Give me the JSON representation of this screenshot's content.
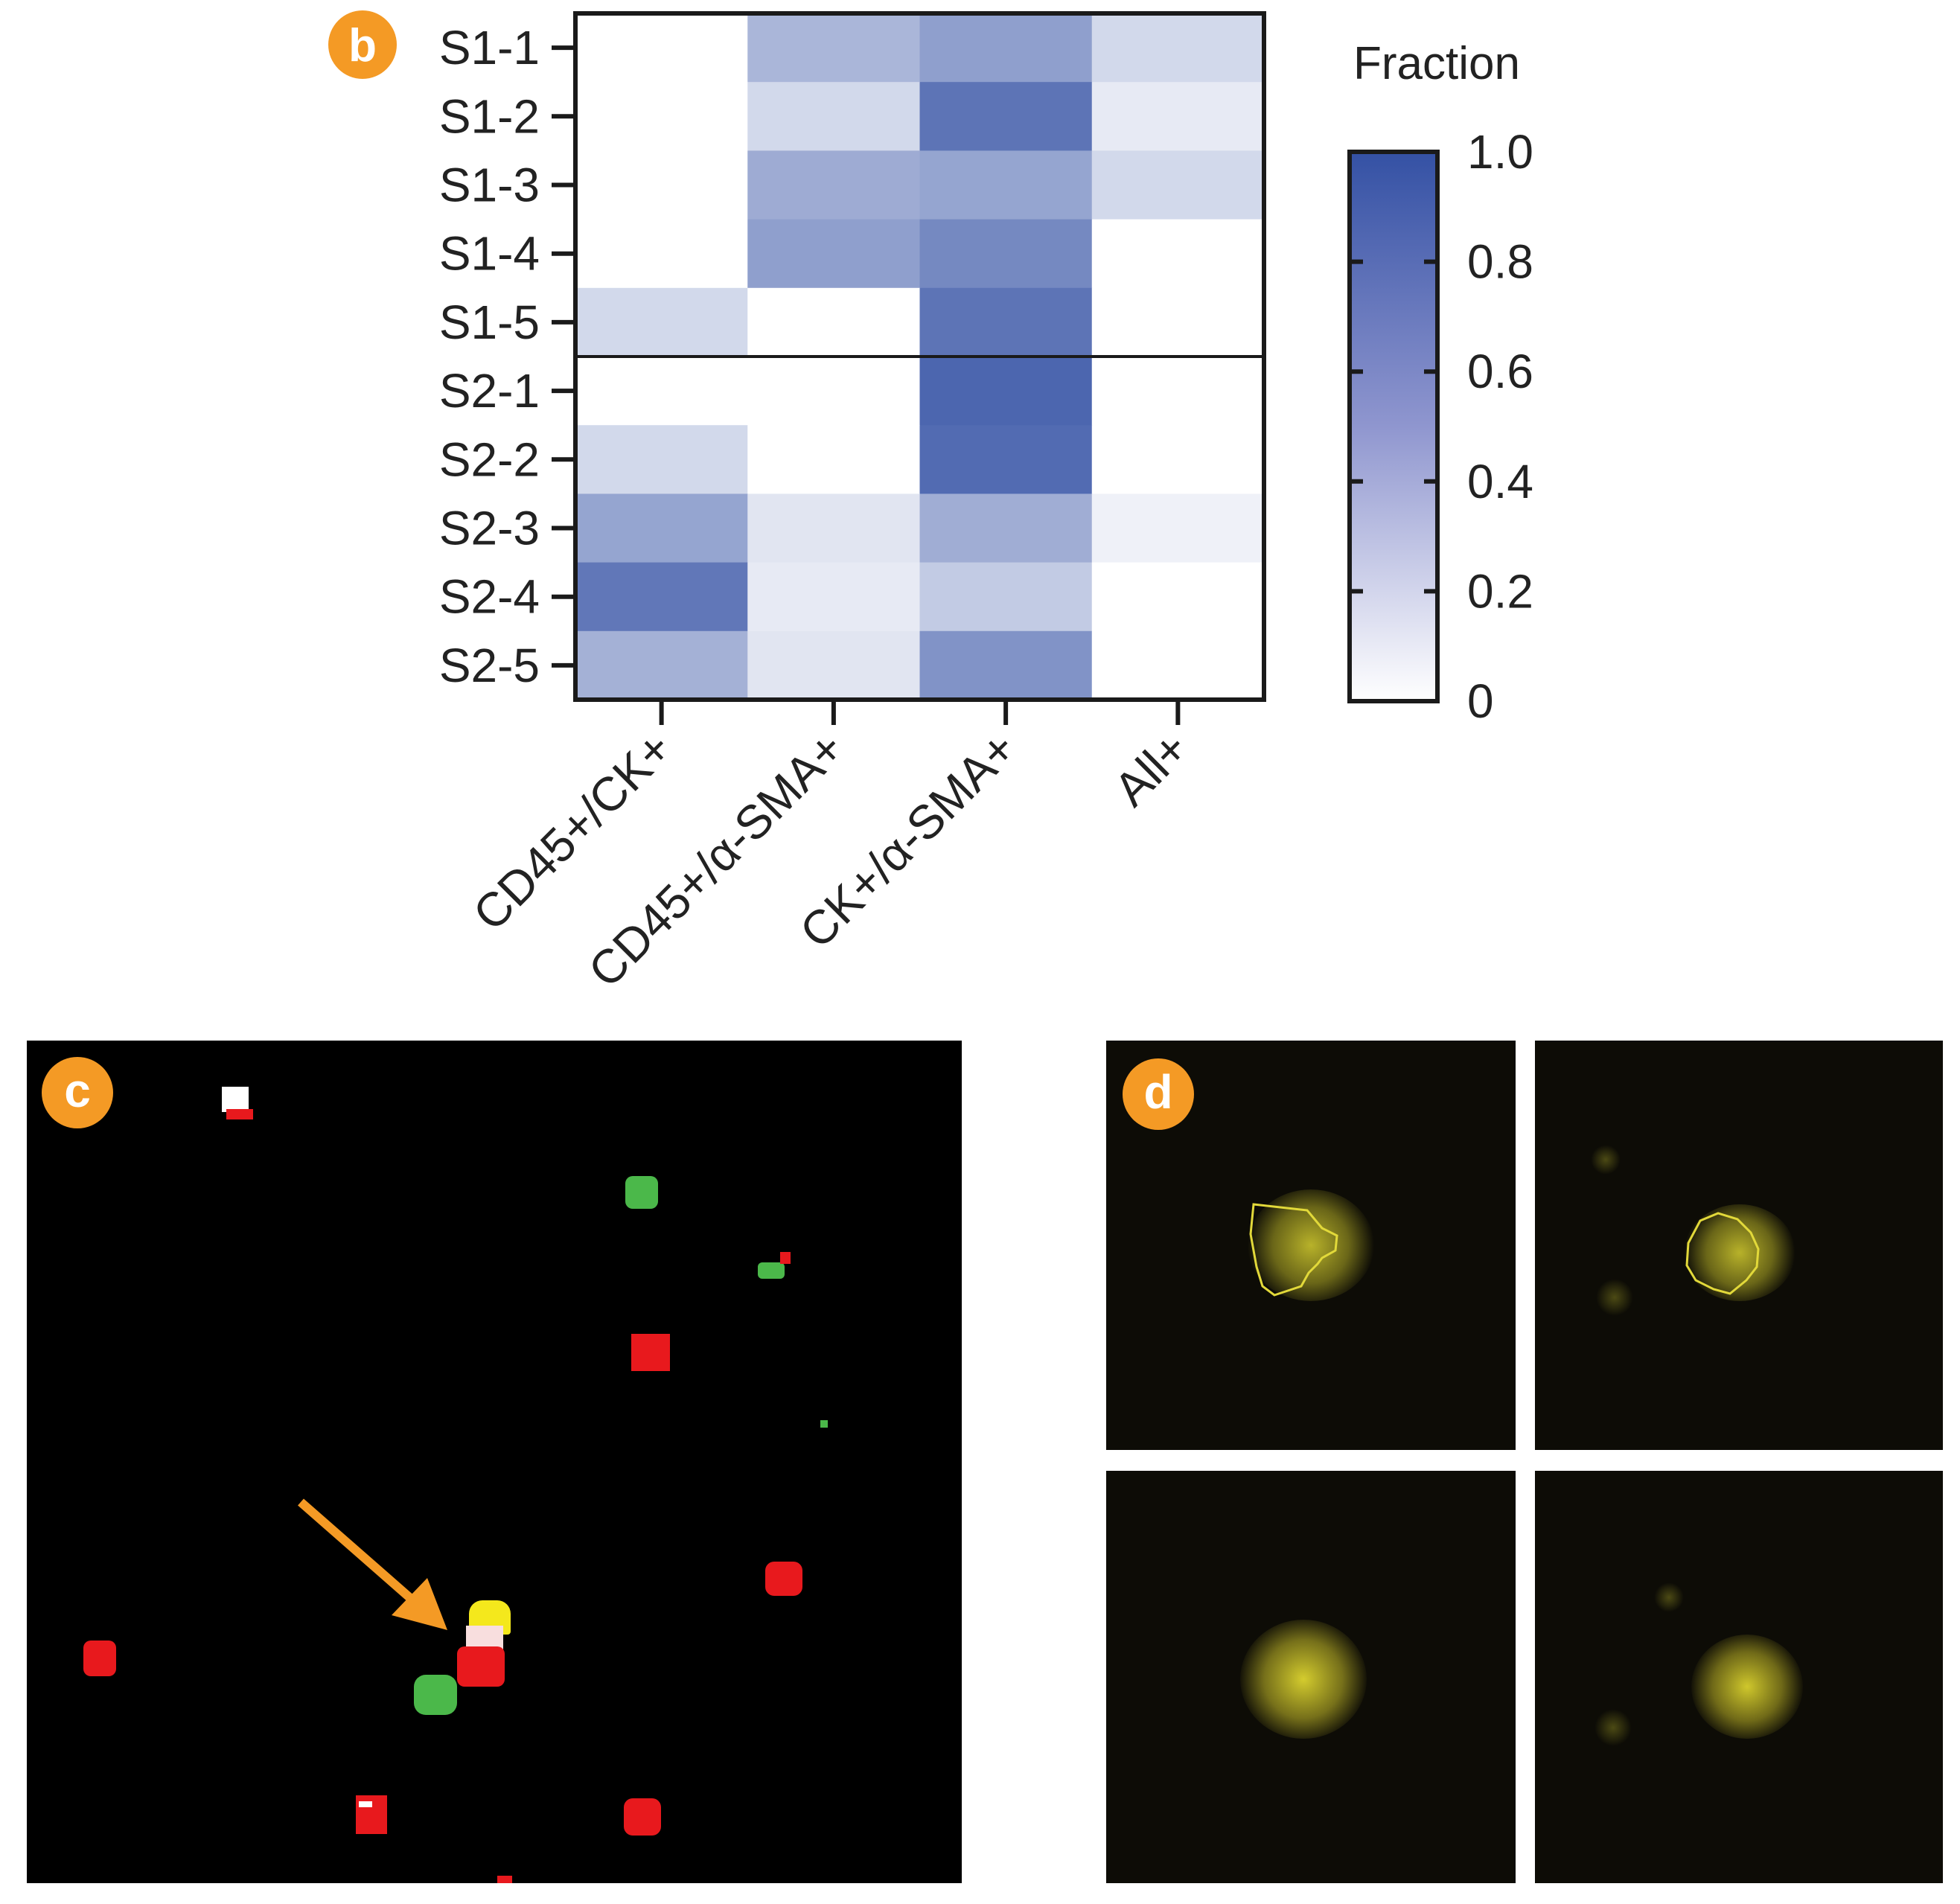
{
  "panels": {
    "b_label": "b",
    "c_label": "c",
    "d_label": "d"
  },
  "chart_data": {
    "type": "heatmap",
    "rows": [
      "S1-1",
      "S1-2",
      "S1-3",
      "S1-4",
      "S1-5",
      "S2-1",
      "S2-2",
      "S2-3",
      "S2-4",
      "S2-5"
    ],
    "columns": [
      "CD45+/CK+",
      "CD45+/α-SMA+",
      "CK+/α-SMA+",
      "All+"
    ],
    "values": [
      [
        0.0,
        0.42,
        0.55,
        0.22
      ],
      [
        0.0,
        0.22,
        0.8,
        0.12
      ],
      [
        0.0,
        0.48,
        0.52,
        0.22
      ],
      [
        0.0,
        0.55,
        0.68,
        0.0
      ],
      [
        0.22,
        0.0,
        0.8,
        0.0
      ],
      [
        0.0,
        0.0,
        0.88,
        0.0
      ],
      [
        0.22,
        0.0,
        0.85,
        0.0
      ],
      [
        0.52,
        0.15,
        0.47,
        0.08
      ],
      [
        0.78,
        0.12,
        0.3,
        0.0
      ],
      [
        0.45,
        0.15,
        0.62,
        0.0
      ]
    ],
    "group_divider_after_row": 4,
    "colorbar": {
      "title": "Fraction",
      "min": 0,
      "max": 1.0,
      "ticks": [
        0,
        0.2,
        0.4,
        0.6,
        0.8,
        1.0
      ],
      "tick_labels": [
        "0",
        "0.2",
        "0.4",
        "0.6",
        "0.8",
        "1.0"
      ],
      "color_low": "#ffffff",
      "color_high": "#3451a4"
    }
  }
}
